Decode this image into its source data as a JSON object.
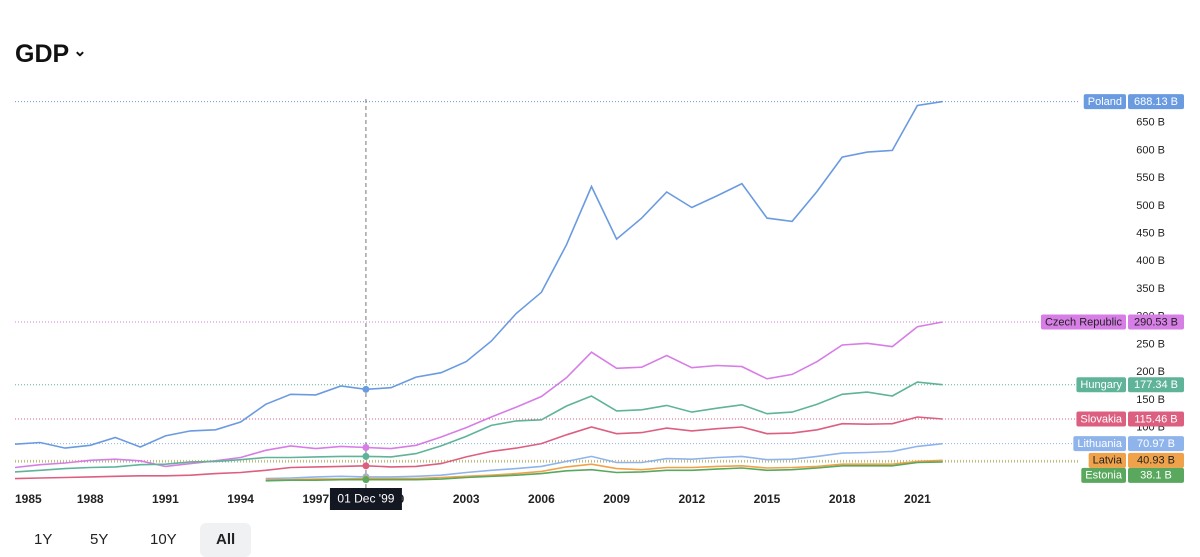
{
  "chart_data": {
    "type": "line",
    "title": "GDP",
    "x": [
      1985,
      1986,
      1987,
      1988,
      1989,
      1990,
      1991,
      1992,
      1993,
      1994,
      1995,
      1996,
      1997,
      1998,
      1999,
      2000,
      2001,
      2002,
      2003,
      2004,
      2005,
      2006,
      2007,
      2008,
      2009,
      2010,
      2011,
      2012,
      2013,
      2014,
      2015,
      2016,
      2017,
      2018,
      2019,
      2020,
      2021,
      2022
    ],
    "xlim": [
      1985,
      2022.5
    ],
    "xticks": [
      1985,
      1988,
      1991,
      1994,
      1997,
      2000,
      2003,
      2006,
      2009,
      2012,
      2015,
      2018,
      2021
    ],
    "ylim": [
      0,
      700
    ],
    "yticks": [
      {
        "value": 100,
        "label": "100 B"
      },
      {
        "value": 150,
        "label": "150 B"
      },
      {
        "value": 200,
        "label": "200 B"
      },
      {
        "value": 250,
        "label": "250 B"
      },
      {
        "value": 300,
        "label": "300 B"
      },
      {
        "value": 350,
        "label": "350 B"
      },
      {
        "value": 400,
        "label": "400 B"
      },
      {
        "value": 450,
        "label": "450 B"
      },
      {
        "value": 500,
        "label": "500 B"
      },
      {
        "value": 550,
        "label": "550 B"
      },
      {
        "value": 600,
        "label": "600 B"
      },
      {
        "value": 650,
        "label": "650 B"
      }
    ],
    "crosshair_x": 1999,
    "crosshair_label": "01 Dec '99",
    "series": [
      {
        "name": "Poland",
        "color": "#6a9be0",
        "values": [
          70,
          73,
          63,
          68,
          82,
          65,
          85,
          94,
          96,
          110,
          142,
          160,
          159,
          175,
          169,
          172,
          191,
          199,
          219,
          256,
          306,
          344,
          430,
          535,
          440,
          478,
          525,
          497,
          518,
          540,
          478,
          472,
          526,
          588,
          597,
          600,
          681,
          688.13
        ],
        "value_labels": [
          "688.13 B"
        ]
      },
      {
        "name": "Czech Republic",
        "color": "#d77de6",
        "values": [
          28,
          33,
          36,
          41,
          43,
          40,
          30,
          35,
          40,
          46,
          59,
          67,
          62,
          66,
          64,
          62,
          68,
          83,
          100,
          119,
          137,
          156,
          190,
          236,
          207,
          209,
          230,
          208,
          212,
          210,
          188,
          196,
          219,
          249,
          252,
          246,
          282,
          290.53
        ],
        "value_labels": [
          "290.53 B"
        ]
      },
      {
        "name": "Hungary",
        "color": "#5fb399",
        "values": [
          20,
          23,
          26,
          28,
          29,
          33,
          34,
          38,
          39,
          42,
          46,
          46,
          47,
          48,
          48,
          47,
          53,
          67,
          84,
          104,
          112,
          114,
          139,
          157,
          130,
          132,
          140,
          128,
          135,
          141,
          125,
          128,
          142,
          160,
          164,
          157,
          182,
          177.34
        ],
        "value_labels": [
          "177.34 B"
        ]
      },
      {
        "name": "Slovakia",
        "color": "#dd5f80",
        "values": [
          8,
          9,
          10,
          11,
          12,
          13,
          13,
          14,
          17,
          19,
          23,
          28,
          29,
          30,
          31,
          29,
          30,
          35,
          47,
          57,
          63,
          71,
          87,
          101,
          89,
          91,
          99,
          94,
          98,
          101,
          89,
          90,
          96,
          107,
          106,
          107,
          119,
          115.46
        ],
        "value_labels": [
          "115.46 B"
        ]
      },
      {
        "name": "Lithuania",
        "color": "#8fb4ec",
        "values": [
          null,
          null,
          null,
          null,
          null,
          null,
          null,
          null,
          null,
          null,
          8,
          9,
          11,
          12,
          11,
          11,
          12,
          14,
          19,
          23,
          26,
          30,
          39,
          48,
          37,
          37,
          44,
          43,
          46,
          48,
          42,
          43,
          48,
          54,
          55,
          57,
          66,
          70.97
        ],
        "value_labels": [
          "70.97 B"
        ]
      },
      {
        "name": "Latvia",
        "color": "#f0a24a",
        "values": [
          null,
          null,
          null,
          null,
          null,
          null,
          null,
          null,
          null,
          null,
          6,
          6,
          7,
          7,
          8,
          8,
          8,
          10,
          12,
          14,
          17,
          21,
          29,
          34,
          26,
          24,
          28,
          28,
          30,
          31,
          27,
          28,
          30,
          34,
          34,
          34,
          39,
          40.93
        ],
        "value_labels": [
          "40.93 B"
        ]
      },
      {
        "name": "Estonia",
        "color": "#5aa85e",
        "values": [
          null,
          null,
          null,
          null,
          null,
          null,
          null,
          null,
          null,
          null,
          4,
          5,
          5,
          6,
          6,
          6,
          6,
          7,
          10,
          12,
          14,
          17,
          22,
          24,
          19,
          20,
          23,
          23,
          25,
          27,
          23,
          24,
          27,
          31,
          31,
          31,
          37,
          38.1
        ],
        "value_labels": [
          "38.1 B"
        ]
      }
    ]
  },
  "controls": {
    "title_menu": "⌄",
    "ranges": [
      "1Y",
      "5Y",
      "10Y",
      "All"
    ],
    "selected": "All"
  }
}
